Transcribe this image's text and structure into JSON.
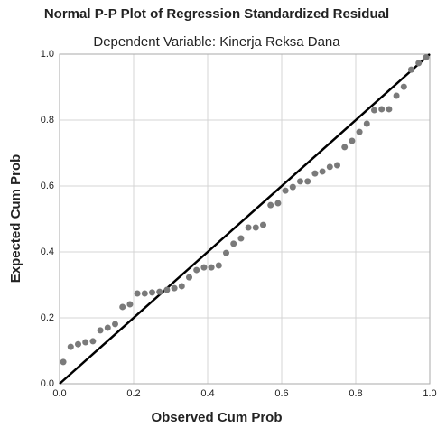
{
  "chart_data": {
    "type": "scatter",
    "title": "Normal P-P Plot of Regression Standardized Residual",
    "subtitle": "Dependent Variable: Kinerja Reksa Dana",
    "x_label": "Observed Cum Prob",
    "y_label": "Expected Cum Prob",
    "color": "#7a7a7a",
    "reference_line_color": "#000000",
    "grid": true,
    "xlim": [
      0,
      1
    ],
    "ylim": [
      0,
      1
    ],
    "xticks": [
      {
        "value": 0,
        "label": "0.0"
      },
      0.2,
      0.4,
      0.6,
      0.8,
      {
        "value": 1,
        "label": "1.0"
      }
    ],
    "yticks": [
      {
        "value": 0,
        "label": "0.0"
      },
      0.2,
      0.4,
      0.6,
      0.8,
      {
        "value": 1,
        "label": "1.0"
      }
    ],
    "x": [
      0.01,
      0.03,
      0.05,
      0.07,
      0.09,
      0.11,
      0.13,
      0.15,
      0.17,
      0.19,
      0.21,
      0.23,
      0.25,
      0.27,
      0.29,
      0.31,
      0.33,
      0.35,
      0.37,
      0.39,
      0.41,
      0.43,
      0.45,
      0.47,
      0.49,
      0.51,
      0.53,
      0.55,
      0.57,
      0.59,
      0.61,
      0.63,
      0.65,
      0.67,
      0.69,
      0.71,
      0.73,
      0.75,
      0.77,
      0.79,
      0.81,
      0.83,
      0.85,
      0.87,
      0.89,
      0.91,
      0.93,
      0.95,
      0.97,
      0.99
    ],
    "values": [
      0.066,
      0.112,
      0.12,
      0.126,
      0.129,
      0.162,
      0.17,
      0.181,
      0.233,
      0.241,
      0.274,
      0.274,
      0.277,
      0.279,
      0.285,
      0.29,
      0.296,
      0.323,
      0.345,
      0.353,
      0.353,
      0.359,
      0.397,
      0.425,
      0.441,
      0.474,
      0.474,
      0.482,
      0.542,
      0.548,
      0.586,
      0.597,
      0.614,
      0.614,
      0.638,
      0.644,
      0.658,
      0.663,
      0.718,
      0.737,
      0.764,
      0.789,
      0.83,
      0.833,
      0.833,
      0.874,
      0.901,
      0.953,
      0.973,
      0.99
    ]
  }
}
